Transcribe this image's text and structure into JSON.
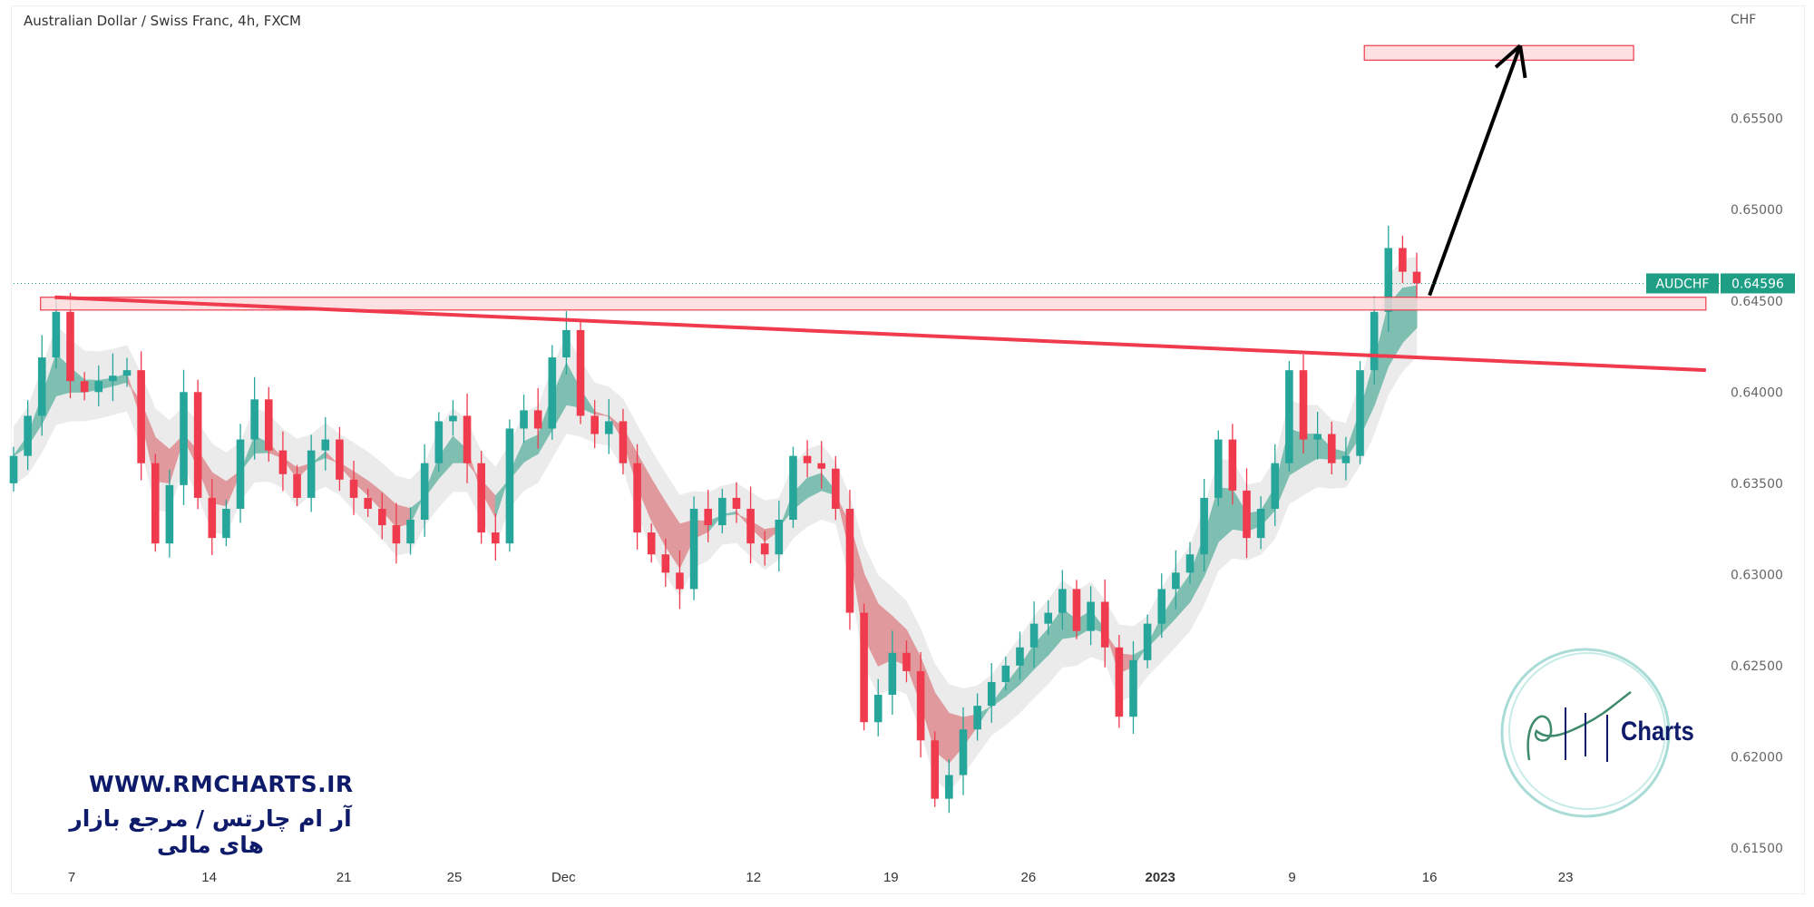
{
  "header": {
    "title": "Australian Dollar / Swiss Franc, 4h, FXCM"
  },
  "watermark": {
    "url": "WWW.RMCHARTS.IR",
    "tagline": "آر ام چارتس / مرجع بازار های مالی",
    "logo_text": "RM Charts",
    "logo_word": "Charts"
  },
  "colors": {
    "up": "#26a69a",
    "down": "#ef3b4d",
    "ribbon_up": "#7fbfb2",
    "ribbon_down": "#e0999c",
    "band": "#e6e6e6",
    "zone_fill": "#fcd9db",
    "zone_border": "#ef3b4d",
    "trendline": "#ef3b4d",
    "arrow": "#000000",
    "label_bg": "#1e9e84"
  },
  "chart_data": {
    "type": "candlestick",
    "title": "Australian Dollar / Swiss Franc, 4h, FXCM",
    "currency": "CHF",
    "symbol": "AUDCHF",
    "last_price": "0.64596",
    "last_price_value": 0.64596,
    "ylim": [
      0.6145,
      0.6615
    ],
    "xlim": [
      0,
      120.5
    ],
    "y_ticks": [
      0.655,
      0.65,
      0.645,
      0.64,
      0.635,
      0.63,
      0.625,
      0.62,
      0.615
    ],
    "y_tick_labels": [
      "0.65500",
      "0.65000",
      "0.64500",
      "0.64000",
      "0.63500",
      "0.63000",
      "0.62500",
      "0.62000",
      "0.61500"
    ],
    "x_ticks": [
      {
        "label": "7",
        "index": 4.1
      },
      {
        "label": "14",
        "index": 13.8
      },
      {
        "label": "21",
        "index": 23.3
      },
      {
        "label": "25",
        "index": 31.1
      },
      {
        "label": "Dec",
        "index": 38.8
      },
      {
        "label": "12",
        "index": 52.2
      },
      {
        "label": "19",
        "index": 61.9
      },
      {
        "label": "26",
        "index": 71.6
      },
      {
        "label": "2023",
        "index": 80.9,
        "bold": true
      },
      {
        "label": "9",
        "index": 90.2
      },
      {
        "label": "16",
        "index": 99.9
      },
      {
        "label": "23",
        "index": 109.5
      }
    ],
    "first_open": 0.635,
    "close": [
      0.6365,
      0.6387,
      0.6419,
      0.6444,
      0.6406,
      0.64,
      0.6406,
      0.6409,
      0.6412,
      0.6361,
      0.6317,
      0.6349,
      0.64,
      0.6342,
      0.632,
      0.6336,
      0.6374,
      0.6396,
      0.6368,
      0.6355,
      0.6342,
      0.6368,
      0.6374,
      0.6352,
      0.6342,
      0.6336,
      0.6327,
      0.6317,
      0.633,
      0.6361,
      0.6384,
      0.6387,
      0.6361,
      0.6323,
      0.6317,
      0.638,
      0.639,
      0.638,
      0.6419,
      0.6434,
      0.6387,
      0.6377,
      0.6384,
      0.6361,
      0.6323,
      0.6311,
      0.6301,
      0.6292,
      0.6336,
      0.6327,
      0.6342,
      0.6336,
      0.6317,
      0.6311,
      0.633,
      0.6365,
      0.6361,
      0.6358,
      0.6336,
      0.6279,
      0.6219,
      0.6234,
      0.6257,
      0.6247,
      0.6209,
      0.6177,
      0.619,
      0.6215,
      0.6228,
      0.6241,
      0.625,
      0.626,
      0.6273,
      0.6279,
      0.6292,
      0.6269,
      0.6285,
      0.626,
      0.6222,
      0.6253,
      0.6273,
      0.6292,
      0.6301,
      0.6311,
      0.6342,
      0.6374,
      0.6346,
      0.632,
      0.6336,
      0.6361,
      0.6412,
      0.6374,
      0.6377,
      0.6361,
      0.6365,
      0.6412,
      0.6444,
      0.6479,
      0.6466,
      0.64596
    ],
    "annotations": {
      "resistance_zone": {
        "from_index": 1.9,
        "to_index": 119.4,
        "low": 0.6445,
        "high": 0.6452
      },
      "target_zone": {
        "from_index": 95.3,
        "to_index": 114.3,
        "low": 0.6582,
        "high": 0.659
      },
      "trendline": {
        "from": [
          2.9,
          0.6452
        ],
        "to": [
          119.4,
          0.6412
        ]
      },
      "arrow": {
        "from": [
          99.9,
          0.6453
        ],
        "to": [
          106.3,
          0.659
        ]
      }
    },
    "grid": false
  }
}
